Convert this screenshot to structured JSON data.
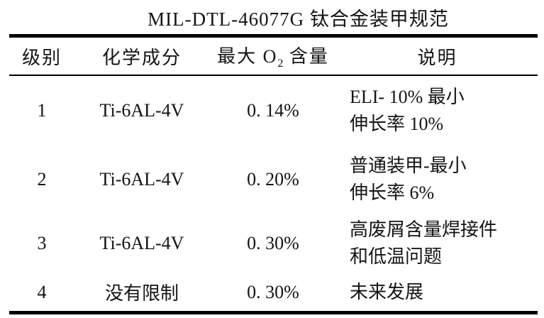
{
  "title": "MIL-DTL-46077G 钛合金装甲规范",
  "table": {
    "headers": {
      "grade": "级别",
      "composition": "化学成分",
      "oxygen_pre": "最大 O",
      "oxygen_sub": "2",
      "oxygen_post": " 含量",
      "description": "说明"
    },
    "rows": [
      {
        "grade": "1",
        "composition": "Ti-6AL-4V",
        "max_o2": "0. 14%",
        "desc_line1": "ELI- 10% 最小",
        "desc_line2": "伸长率 10%"
      },
      {
        "grade": "2",
        "composition": "Ti-6AL-4V",
        "max_o2": "0. 20%",
        "desc_line1": "普通装甲-最小",
        "desc_line2": "伸长率 6%"
      },
      {
        "grade": "3",
        "composition": "Ti-6AL-4V",
        "max_o2": "0. 30%",
        "desc_line1": "高废屑含量焊接件",
        "desc_line2": "和低温问题"
      },
      {
        "grade": "4",
        "composition": "没有限制",
        "max_o2": "0. 30%",
        "desc_line1": "未来发展"
      }
    ]
  },
  "colors": {
    "text": "#141414",
    "rule": "#000000",
    "background": "#ffffff"
  }
}
